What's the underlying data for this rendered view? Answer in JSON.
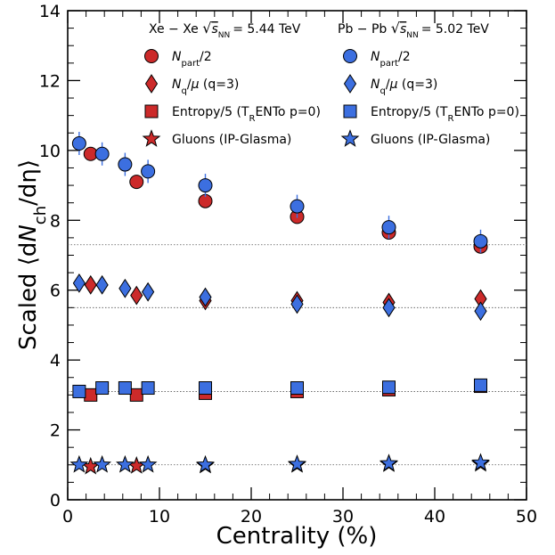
{
  "chart_data": {
    "type": "scatter",
    "xlabel": "Centrality (%)",
    "ylabel": "Scaled ⟨dN_ch/dη⟩",
    "xlim": [
      0,
      50
    ],
    "ylim": [
      0,
      14
    ],
    "x_ticks": [
      0,
      10,
      20,
      30,
      40,
      50
    ],
    "y_ticks": [
      0,
      2,
      4,
      6,
      8,
      10,
      12,
      14
    ],
    "reference_lines_y": [
      7.3,
      5.5,
      3.1,
      1.0
    ],
    "legend": {
      "placement": "top",
      "col_headers": [
        {
          "text": "Xe − Xe ",
          "energy": "= 5.44 TeV"
        },
        {
          "text": "Pb − Pb ",
          "energy": "= 5.02 TeV"
        }
      ],
      "sqrt_label": "s",
      "sqrt_sub": "NN",
      "entries": [
        {
          "label": "N_part/2",
          "marker": "circle"
        },
        {
          "label": "N_q/μ (q=3)",
          "marker": "diamond"
        },
        {
          "label": "Entropy/5 (T_RENTo p=0)",
          "marker": "square"
        },
        {
          "label": "Gluons (IP-Glasma)",
          "marker": "star"
        }
      ]
    },
    "colors": {
      "xe": "#cc2a2a",
      "pb": "#3c6fe0"
    },
    "series": [
      {
        "name": "Xe-Xe N_part/2",
        "system": "xe",
        "marker": "circle",
        "x": [
          2.5,
          7.5,
          15,
          25,
          35,
          45
        ],
        "y": [
          9.9,
          9.1,
          8.55,
          8.1,
          7.65,
          7.25
        ]
      },
      {
        "name": "Xe-Xe N_q/μ",
        "system": "xe",
        "marker": "diamond",
        "x": [
          2.5,
          7.5,
          15,
          25,
          35,
          45
        ],
        "y": [
          6.15,
          5.85,
          5.7,
          5.7,
          5.65,
          5.75
        ]
      },
      {
        "name": "Xe-Xe Entropy/5",
        "system": "xe",
        "marker": "square",
        "x": [
          2.5,
          7.5,
          15,
          25,
          35,
          45
        ],
        "y": [
          3.0,
          3.0,
          3.05,
          3.1,
          3.15,
          3.25
        ]
      },
      {
        "name": "Xe-Xe Gluons",
        "system": "xe",
        "marker": "star",
        "x": [
          2.5,
          7.5,
          15,
          25,
          35,
          45
        ],
        "y": [
          0.95,
          0.97,
          0.98,
          1.0,
          1.02,
          1.03
        ]
      },
      {
        "name": "Pb-Pb N_part/2",
        "system": "pb",
        "marker": "circle",
        "x": [
          1.25,
          3.75,
          6.25,
          8.75,
          15,
          25,
          35,
          45
        ],
        "y": [
          10.2,
          9.9,
          9.6,
          9.4,
          9.0,
          8.4,
          7.8,
          7.4
        ]
      },
      {
        "name": "Pb-Pb N_q/μ",
        "system": "pb",
        "marker": "diamond",
        "x": [
          1.25,
          3.75,
          6.25,
          8.75,
          15,
          25,
          35,
          45
        ],
        "y": [
          6.2,
          6.15,
          6.05,
          5.95,
          5.8,
          5.6,
          5.5,
          5.4
        ]
      },
      {
        "name": "Pb-Pb Entropy/5",
        "system": "pb",
        "marker": "square",
        "x": [
          1.25,
          3.75,
          6.25,
          8.75,
          15,
          25,
          35,
          45
        ],
        "y": [
          3.1,
          3.2,
          3.2,
          3.2,
          3.2,
          3.2,
          3.22,
          3.28
        ]
      },
      {
        "name": "Pb-Pb Gluons",
        "system": "pb",
        "marker": "star",
        "x": [
          1.25,
          3.75,
          6.25,
          8.75,
          15,
          25,
          35,
          45
        ],
        "y": [
          1.0,
          1.0,
          1.0,
          1.0,
          1.0,
          1.02,
          1.04,
          1.06
        ]
      }
    ]
  }
}
